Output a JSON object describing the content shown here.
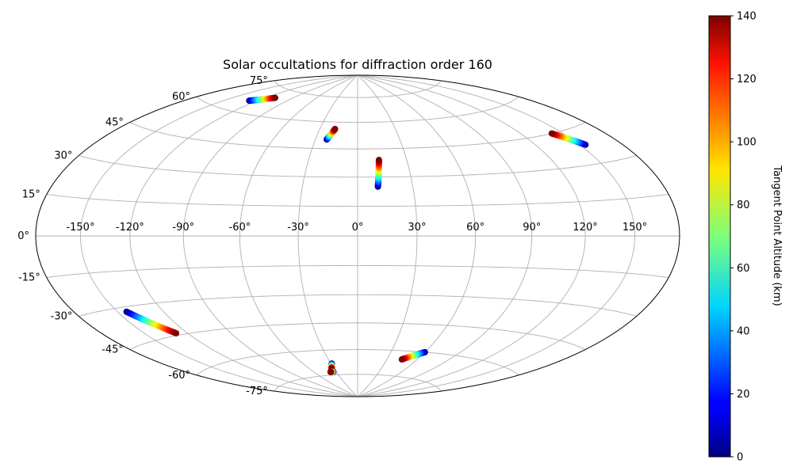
{
  "chart_data": {
    "type": "scatter",
    "projection": "hammer",
    "title": "Solar occultations for diffraction order 160",
    "xlabel": "",
    "ylabel": "",
    "grid": true,
    "lon_ticks": [
      -150,
      -120,
      -90,
      -60,
      -30,
      0,
      30,
      60,
      90,
      120,
      150
    ],
    "lon_tick_labels": [
      "-150°",
      "-120°",
      "-90°",
      "-60°",
      "-30°",
      "0°",
      "30°",
      "60°",
      "90°",
      "120°",
      "150°"
    ],
    "lat_ticks": [
      75,
      60,
      45,
      30,
      15,
      0,
      -15,
      -30,
      -45,
      -60,
      -75
    ],
    "lat_tick_labels": [
      "75°",
      "60°",
      "45°",
      "30°",
      "15°",
      "0°",
      "-15°",
      "-30°",
      "-45°",
      "-60°",
      "-75°"
    ],
    "colorbar": {
      "label": "Tangent Point Altitude (km)",
      "colormap": "jet",
      "range": [
        0,
        140
      ],
      "ticks": [
        0,
        20,
        40,
        60,
        80,
        100,
        120,
        140
      ],
      "tick_labels": [
        "0",
        "20",
        "40",
        "60",
        "80",
        "100",
        "120",
        "140"
      ]
    },
    "series": [
      {
        "lon_start": -128,
        "lat_start": 66,
        "lon_end": -110,
        "lat_end": 70,
        "alt_start": 0,
        "alt_end": 140
      },
      {
        "lon_start": -22,
        "lat_start": 50,
        "lon_end": -18,
        "lat_end": 56,
        "alt_start": 0,
        "alt_end": 140
      },
      {
        "lon_start": 11,
        "lat_start": 25,
        "lon_end": 13,
        "lat_end": 39,
        "alt_start": 0,
        "alt_end": 140
      },
      {
        "lon_start": 154,
        "lat_start": 38,
        "lon_end": 142,
        "lat_end": 45,
        "alt_start": 0,
        "alt_end": 140
      },
      {
        "lon_start": -144,
        "lat_start": -32,
        "lon_end": -128,
        "lat_end": -44,
        "alt_start": 0,
        "alt_end": 140
      },
      {
        "lon_start": -29,
        "lat_start": -68,
        "lon_end": -33,
        "lat_end": -71,
        "alt_start": 0,
        "alt_end": 140
      },
      {
        "lon_start": -34,
        "lat_start": -73,
        "lon_end": -38,
        "lat_end": -73,
        "alt_start": 0,
        "alt_end": 140
      },
      {
        "lon_start": 60,
        "lat_start": -60,
        "lon_end": 45,
        "lat_end": -65,
        "alt_start": 0,
        "alt_end": 140
      }
    ]
  }
}
